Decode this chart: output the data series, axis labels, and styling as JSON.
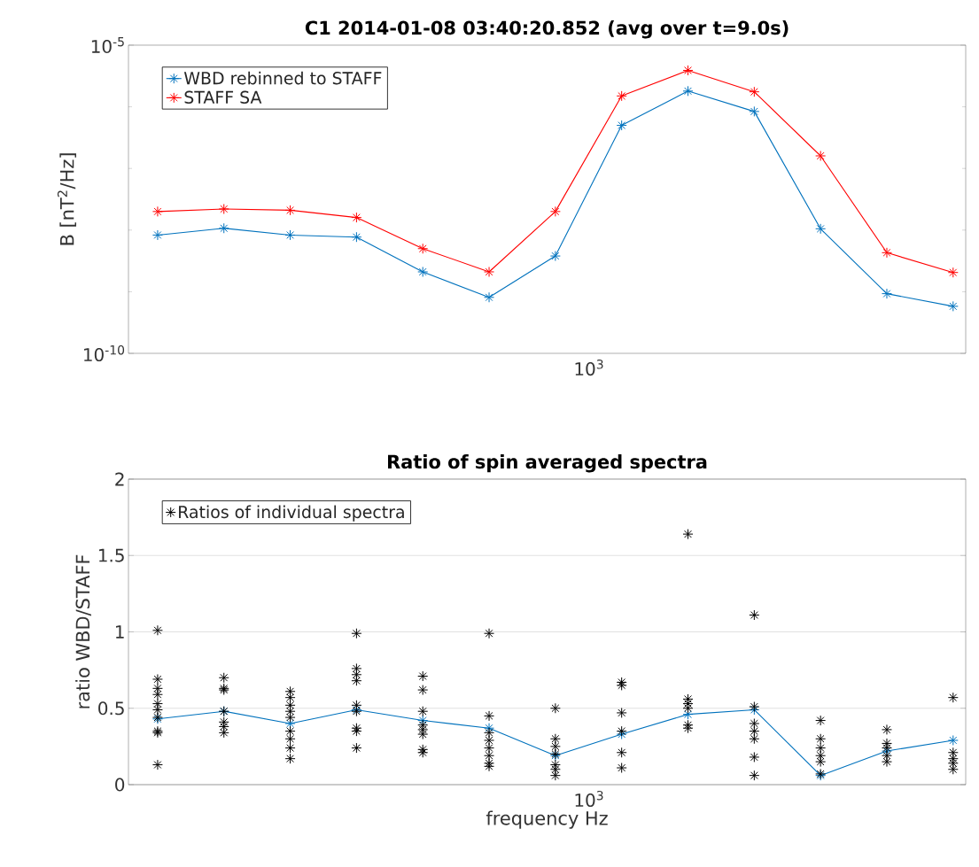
{
  "chart_data": [
    {
      "type": "line",
      "title": "C1 2014-01-08 03:40:20.852 (avg over t=9.0s)",
      "ylabel": "B [nT$^{2}$/Hz]",
      "log": "y",
      "marker": "cross",
      "line_style": "solid",
      "legend": "top left",
      "grid": false,
      "ylim": [
        1e-10,
        1e-05
      ],
      "yticks": [
        {
          "value": 1e-10,
          "label": "10$^{-10}$"
        },
        {
          "value": 1e-09,
          "label": null
        },
        {
          "value": 1e-08,
          "label": null
        },
        {
          "value": 1e-07,
          "label": null
        },
        {
          "value": 1e-06,
          "label": null
        },
        {
          "value": 1e-05,
          "label": "10$^{-5}$"
        }
      ],
      "categories": [
        null,
        null,
        null,
        null,
        null,
        null,
        null,
        null,
        null,
        null,
        null,
        null,
        null
      ],
      "annotations": [
        "10$^{3}$"
      ],
      "series": [
        {
          "name": "WBD rebinned to STAFF",
          "color": "#0072bd",
          "values": [
            8.3e-09,
            1.07e-08,
            8.3e-09,
            7.7e-09,
            2.1e-09,
            8.1e-10,
            3.8e-09,
            5e-07,
            1.8e-06,
            8.4e-07,
            1.05e-08,
            9.3e-10,
            5.8e-10
          ]
        },
        {
          "name": "STAFF SA",
          "color": "#ff0000",
          "values": [
            2e-08,
            2.2e-08,
            2.1e-08,
            1.6e-08,
            5e-09,
            2.1e-09,
            2e-08,
            1.5e-06,
            3.9e-06,
            1.75e-06,
            1.6e-07,
            4.3e-09,
            2.05e-09
          ]
        }
      ]
    },
    {
      "type": "scatter",
      "title": "Ratio of spin averaged spectra",
      "xlabel": "frequency Hz",
      "ylabel": "ratio WBD/STAFF",
      "marker": "cross",
      "line_style": "solid",
      "legend": "top left",
      "grid": "y",
      "ylim": [
        0,
        2
      ],
      "yticks": [
        {
          "value": 0,
          "label": "0"
        },
        {
          "value": 0.5,
          "label": "0.5"
        },
        {
          "value": 1,
          "label": "1"
        },
        {
          "value": 1.5,
          "label": "1.5"
        },
        {
          "value": 2,
          "label": "2"
        }
      ],
      "categories": [
        null,
        null,
        null,
        null,
        null,
        null,
        null,
        null,
        null,
        null,
        null,
        null,
        null
      ],
      "annotations": [
        "10$^{3}$"
      ],
      "series": [
        {
          "type": "line",
          "color": "#0072bd",
          "values": [
            0.43,
            0.48,
            0.4,
            0.49,
            0.42,
            0.37,
            0.19,
            0.33,
            0.46,
            0.49,
            0.06,
            0.22,
            0.29
          ]
        },
        {
          "name": "Ratios of individual spectra",
          "color": "#000000",
          "values": [
            1.01,
            0.7,
            0.61,
            0.99,
            0.71,
            0.99,
            0.5,
            0.67,
            1.64,
            1.11,
            0.42,
            0.36,
            0.57
          ]
        },
        {
          "color": "#000000",
          "values": [
            0.69,
            0.63,
            0.57,
            0.76,
            0.62,
            0.45,
            0.3,
            0.65,
            0.56,
            0.51,
            0.3,
            0.27,
            0.21
          ]
        },
        {
          "color": "#000000",
          "values": [
            0.63,
            0.62,
            0.52,
            0.72,
            0.48,
            0.34,
            0.25,
            0.47,
            0.53,
            0.4,
            0.24,
            0.24,
            0.17
          ]
        },
        {
          "color": "#000000",
          "values": [
            0.59,
            0.48,
            0.48,
            0.68,
            0.39,
            0.29,
            0.2,
            0.35,
            0.5,
            0.35,
            0.19,
            0.19,
            0.14
          ]
        },
        {
          "color": "#000000",
          "values": [
            0.53,
            0.41,
            0.44,
            0.52,
            0.36,
            0.24,
            0.13,
            0.21,
            0.39,
            0.3,
            0.15,
            0.15,
            0.1
          ]
        },
        {
          "color": "#000000",
          "values": [
            0.49,
            0.38,
            0.35,
            0.48,
            0.33,
            0.19,
            0.1,
            0.11,
            0.37,
            0.18,
            0.07,
            null,
            null
          ]
        },
        {
          "color": "#000000",
          "values": [
            0.44,
            0.34,
            0.3,
            0.37,
            0.23,
            0.14,
            0.06,
            null,
            null,
            0.06,
            null,
            null,
            null
          ]
        },
        {
          "color": "#000000",
          "values": [
            0.35,
            null,
            0.24,
            0.35,
            0.21,
            0.12,
            null,
            null,
            null,
            null,
            null,
            null,
            null
          ]
        },
        {
          "color": "#000000",
          "values": [
            0.34,
            null,
            0.17,
            0.24,
            null,
            null,
            null,
            null,
            null,
            null,
            null,
            null,
            null
          ]
        },
        {
          "color": "#000000",
          "values": [
            0.13,
            null,
            null,
            null,
            null,
            null,
            null,
            null,
            null,
            null,
            null,
            null,
            null
          ]
        }
      ]
    }
  ]
}
